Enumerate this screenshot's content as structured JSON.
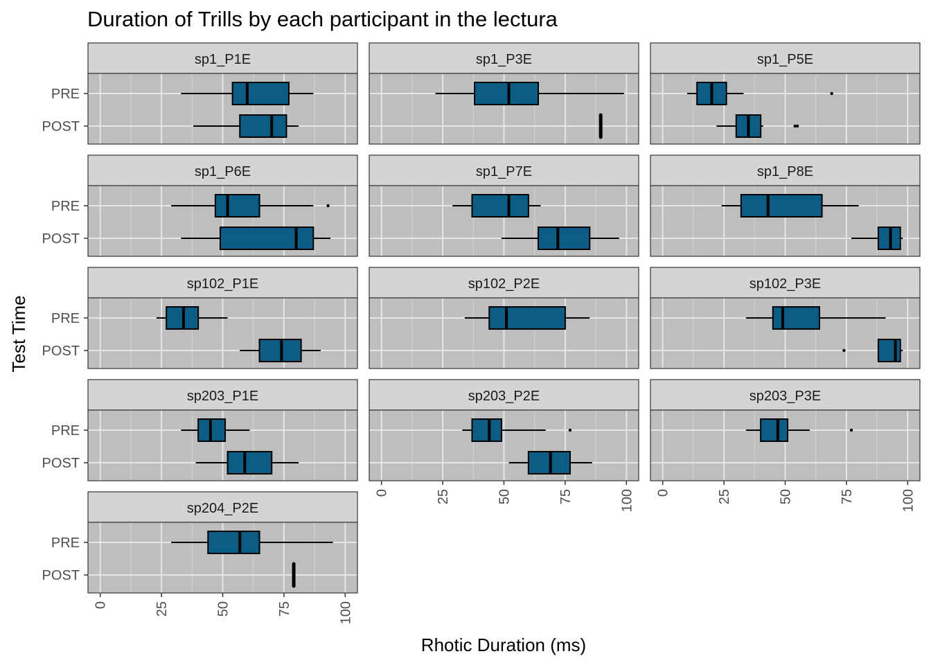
{
  "chart_data": {
    "type": "boxplot",
    "title": "Duration of Trills by each participant in the lectura",
    "xlabel": "Rhotic Duration (ms)",
    "ylabel": "Test Time",
    "xlim": [
      -5,
      105
    ],
    "x_ticks": [
      0,
      25,
      50,
      75,
      100
    ],
    "categories": [
      "PRE",
      "POST"
    ],
    "fill_color": "#0d5c85",
    "panel_background": "#bebebe",
    "strip_background": "#d4d4d4",
    "grid": true,
    "facets": [
      {
        "name": "sp1_P1E",
        "boxes": [
          {
            "group": "PRE",
            "min": 33,
            "q1": 54,
            "median": 60,
            "q3": 77,
            "max": 87,
            "outliers": []
          },
          {
            "group": "POST",
            "min": 38,
            "q1": 57,
            "median": 70,
            "q3": 76,
            "max": 81,
            "outliers": []
          }
        ]
      },
      {
        "name": "sp1_P3E",
        "boxes": [
          {
            "group": "PRE",
            "min": 22,
            "q1": 38,
            "median": 52,
            "q3": 64,
            "max": 99,
            "outliers": []
          },
          {
            "group": "POST",
            "min": 89.5,
            "q1": 89.5,
            "median": 89.5,
            "q3": 89.5,
            "max": 89.5,
            "outliers": []
          }
        ]
      },
      {
        "name": "sp1_P5E",
        "boxes": [
          {
            "group": "PRE",
            "min": 10,
            "q1": 14,
            "median": 20,
            "q3": 26,
            "max": 33,
            "outliers": [
              69
            ]
          },
          {
            "group": "POST",
            "min": 22,
            "q1": 30,
            "median": 35,
            "q3": 40,
            "max": 41,
            "outliers": [
              54,
              55
            ]
          }
        ]
      },
      {
        "name": "sp1_P6E",
        "boxes": [
          {
            "group": "PRE",
            "min": 29,
            "q1": 47,
            "median": 52,
            "q3": 65,
            "max": 87,
            "outliers": [
              93
            ]
          },
          {
            "group": "POST",
            "min": 33,
            "q1": 49,
            "median": 80,
            "q3": 87,
            "max": 94,
            "outliers": []
          }
        ]
      },
      {
        "name": "sp1_P7E",
        "boxes": [
          {
            "group": "PRE",
            "min": 29,
            "q1": 37,
            "median": 52,
            "q3": 60,
            "max": 65,
            "outliers": []
          },
          {
            "group": "POST",
            "min": 49,
            "q1": 64,
            "median": 72,
            "q3": 85,
            "max": 97,
            "outliers": []
          }
        ]
      },
      {
        "name": "sp1_P8E",
        "boxes": [
          {
            "group": "PRE",
            "min": 24,
            "q1": 32,
            "median": 43,
            "q3": 65,
            "max": 80,
            "outliers": []
          },
          {
            "group": "POST",
            "min": 77,
            "q1": 88,
            "median": 93,
            "q3": 97,
            "max": 98,
            "outliers": []
          }
        ]
      },
      {
        "name": "sp102_P1E",
        "boxes": [
          {
            "group": "PRE",
            "min": 23,
            "q1": 27,
            "median": 34,
            "q3": 40,
            "max": 52,
            "outliers": []
          },
          {
            "group": "POST",
            "min": 57,
            "q1": 65,
            "median": 74,
            "q3": 82,
            "max": 90,
            "outliers": []
          }
        ]
      },
      {
        "name": "sp102_P2E",
        "boxes": [
          {
            "group": "PRE",
            "min": 34,
            "q1": 44,
            "median": 51,
            "q3": 75,
            "max": 85,
            "outliers": []
          },
          {
            "group": "POST",
            "min": null,
            "q1": null,
            "median": null,
            "q3": null,
            "max": null,
            "outliers": []
          }
        ]
      },
      {
        "name": "sp102_P3E",
        "boxes": [
          {
            "group": "PRE",
            "min": 34,
            "q1": 45,
            "median": 49,
            "q3": 64,
            "max": 91,
            "outliers": []
          },
          {
            "group": "POST",
            "min": 88,
            "q1": 88,
            "median": 95,
            "q3": 97,
            "max": 98,
            "outliers": [
              74
            ]
          }
        ]
      },
      {
        "name": "sp203_P1E",
        "boxes": [
          {
            "group": "PRE",
            "min": 33,
            "q1": 40,
            "median": 45,
            "q3": 51,
            "max": 61,
            "outliers": []
          },
          {
            "group": "POST",
            "min": 39,
            "q1": 52,
            "median": 59,
            "q3": 70,
            "max": 81,
            "outliers": []
          }
        ]
      },
      {
        "name": "sp203_P2E",
        "boxes": [
          {
            "group": "PRE",
            "min": 33,
            "q1": 37,
            "median": 44,
            "q3": 49,
            "max": 67,
            "outliers": [
              77
            ]
          },
          {
            "group": "POST",
            "min": 52,
            "q1": 60,
            "median": 69,
            "q3": 77,
            "max": 86,
            "outliers": []
          }
        ]
      },
      {
        "name": "sp203_P3E",
        "boxes": [
          {
            "group": "PRE",
            "min": 34,
            "q1": 40,
            "median": 47,
            "q3": 51,
            "max": 60,
            "outliers": [
              77
            ]
          },
          {
            "group": "POST",
            "min": null,
            "q1": null,
            "median": null,
            "q3": null,
            "max": null,
            "outliers": []
          }
        ]
      },
      {
        "name": "sp204_P2E",
        "boxes": [
          {
            "group": "PRE",
            "min": 29,
            "q1": 44,
            "median": 57,
            "q3": 65,
            "max": 95,
            "outliers": []
          },
          {
            "group": "POST",
            "min": 79,
            "q1": 79,
            "median": 79,
            "q3": 79,
            "max": 79,
            "outliers": []
          }
        ]
      }
    ]
  }
}
